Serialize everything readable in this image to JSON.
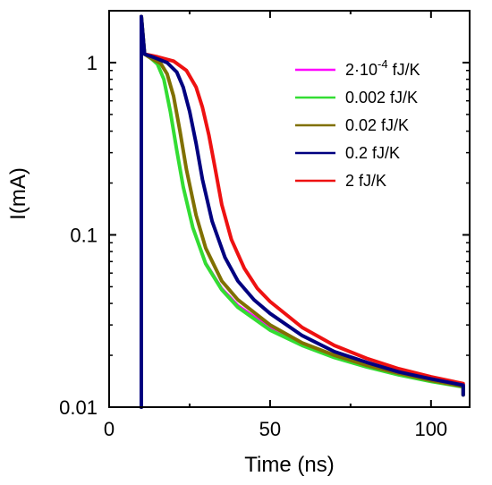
{
  "chart_data": {
    "type": "line",
    "xlabel": "Time (ns)",
    "ylabel": "I(mA)",
    "xlim": [
      0,
      112
    ],
    "ylim": [
      0.01,
      2
    ],
    "y_scale": "log",
    "x_ticks": [
      0,
      50,
      100
    ],
    "y_ticks": [
      {
        "value": 0.01,
        "label": "0.01"
      },
      {
        "value": 0.1,
        "label": "0.1"
      },
      {
        "value": 1,
        "label": "1"
      }
    ],
    "legend_position": "top-right",
    "grid": false,
    "series": [
      {
        "name": "2·10⁻⁴ fJ/K",
        "name_base": "2·10",
        "name_exp": "-4",
        "name_unit": " fJ/K",
        "color": "#ff00ff",
        "points": [
          [
            10,
            0.01
          ],
          [
            10,
            1.85
          ],
          [
            11,
            1.12
          ],
          [
            13,
            1.06
          ],
          [
            15,
            0.98
          ],
          [
            17,
            0.8
          ],
          [
            19,
            0.52
          ],
          [
            21,
            0.31
          ],
          [
            23,
            0.19
          ],
          [
            26,
            0.11
          ],
          [
            30,
            0.069
          ],
          [
            35,
            0.049
          ],
          [
            40,
            0.039
          ],
          [
            50,
            0.029
          ],
          [
            60,
            0.023
          ],
          [
            70,
            0.0195
          ],
          [
            80,
            0.0172
          ],
          [
            90,
            0.0155
          ],
          [
            100,
            0.0142
          ],
          [
            110,
            0.0132
          ],
          [
            110,
            0.0118
          ]
        ]
      },
      {
        "name": "0.002 fJ/K",
        "color": "#33dd33",
        "points": [
          [
            10,
            0.01
          ],
          [
            10,
            1.85
          ],
          [
            11,
            1.12
          ],
          [
            13,
            1.06
          ],
          [
            15,
            0.98
          ],
          [
            17,
            0.8
          ],
          [
            19,
            0.52
          ],
          [
            21,
            0.31
          ],
          [
            23,
            0.19
          ],
          [
            26,
            0.11
          ],
          [
            30,
            0.068
          ],
          [
            35,
            0.048
          ],
          [
            40,
            0.038
          ],
          [
            50,
            0.028
          ],
          [
            60,
            0.0228
          ],
          [
            70,
            0.0194
          ],
          [
            80,
            0.0171
          ],
          [
            90,
            0.0154
          ],
          [
            100,
            0.0141
          ],
          [
            110,
            0.0131
          ],
          [
            110,
            0.0118
          ]
        ]
      },
      {
        "name": "0.02 fJ/K",
        "color": "#807000",
        "points": [
          [
            10,
            0.01
          ],
          [
            10,
            1.85
          ],
          [
            11,
            1.12
          ],
          [
            13,
            1.06
          ],
          [
            16,
            0.99
          ],
          [
            18,
            0.86
          ],
          [
            20,
            0.64
          ],
          [
            22,
            0.4
          ],
          [
            24,
            0.24
          ],
          [
            27,
            0.13
          ],
          [
            30,
            0.084
          ],
          [
            35,
            0.054
          ],
          [
            40,
            0.042
          ],
          [
            50,
            0.03
          ],
          [
            60,
            0.0236
          ],
          [
            70,
            0.02
          ],
          [
            80,
            0.0175
          ],
          [
            90,
            0.0157
          ],
          [
            100,
            0.0143
          ],
          [
            110,
            0.0132
          ],
          [
            110,
            0.0118
          ]
        ]
      },
      {
        "name": "0.2 fJ/K",
        "color": "#000080",
        "points": [
          [
            10,
            0.01
          ],
          [
            10,
            1.85
          ],
          [
            11,
            1.12
          ],
          [
            14,
            1.07
          ],
          [
            18,
            1.0
          ],
          [
            21,
            0.88
          ],
          [
            23,
            0.72
          ],
          [
            25,
            0.52
          ],
          [
            27,
            0.34
          ],
          [
            29,
            0.21
          ],
          [
            32,
            0.12
          ],
          [
            36,
            0.074
          ],
          [
            40,
            0.054
          ],
          [
            45,
            0.042
          ],
          [
            50,
            0.035
          ],
          [
            60,
            0.026
          ],
          [
            70,
            0.021
          ],
          [
            80,
            0.0182
          ],
          [
            90,
            0.016
          ],
          [
            100,
            0.0146
          ],
          [
            110,
            0.0134
          ],
          [
            110,
            0.0118
          ]
        ]
      },
      {
        "name": "2 fJ/K",
        "color": "#ee1111",
        "points": [
          [
            10,
            0.01
          ],
          [
            10,
            1.85
          ],
          [
            11,
            1.12
          ],
          [
            15,
            1.08
          ],
          [
            20,
            1.02
          ],
          [
            24,
            0.9
          ],
          [
            27,
            0.72
          ],
          [
            29,
            0.55
          ],
          [
            31,
            0.38
          ],
          [
            33,
            0.24
          ],
          [
            35,
            0.15
          ],
          [
            38,
            0.094
          ],
          [
            42,
            0.064
          ],
          [
            46,
            0.049
          ],
          [
            50,
            0.041
          ],
          [
            60,
            0.029
          ],
          [
            70,
            0.0228
          ],
          [
            80,
            0.0192
          ],
          [
            90,
            0.0167
          ],
          [
            100,
            0.015
          ],
          [
            110,
            0.0137
          ],
          [
            110,
            0.0118
          ]
        ]
      }
    ]
  }
}
